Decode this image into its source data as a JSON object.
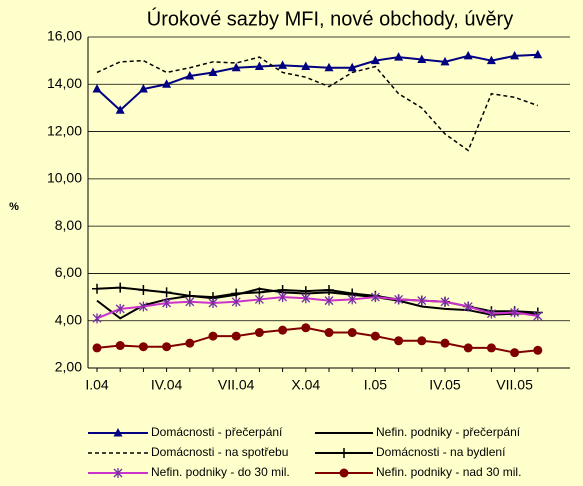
{
  "chart_data": {
    "type": "line",
    "title": "Úrokové sazby MFI, nové obchody, úvěry",
    "y_label": "%",
    "background": "#ffffcc",
    "grid": true,
    "legend": "bottom",
    "categories": [
      "I.04",
      null,
      null,
      "IV.04",
      null,
      null,
      "VII.04",
      null,
      null,
      "X.04",
      null,
      null,
      "I.05",
      null,
      null,
      "IV.05",
      null,
      null,
      "VII.05",
      null
    ],
    "ylim": [
      2,
      16
    ],
    "yticks": [
      {
        "value": 2,
        "label": "2,00"
      },
      {
        "value": 4,
        "label": "4,00"
      },
      {
        "value": 6,
        "label": "6,00"
      },
      {
        "value": 8,
        "label": "8,00"
      },
      {
        "value": 10,
        "label": "10,00"
      },
      {
        "value": 12,
        "label": "12,00"
      },
      {
        "value": 14,
        "label": "14,00"
      },
      {
        "value": 16,
        "label": "16,00"
      }
    ],
    "series": [
      {
        "name": "Domácnosti - přečerpání",
        "color": "#000080",
        "marker": "triangle",
        "dash": false,
        "values": [
          13.8,
          12.9,
          13.8,
          14.0,
          14.35,
          14.5,
          14.7,
          14.75,
          14.8,
          14.75,
          14.7,
          14.7,
          15.0,
          15.15,
          15.05,
          14.95,
          15.2,
          15.0,
          15.2,
          15.25
        ]
      },
      {
        "name": "Nefin. podniky - přečerpání",
        "color": "#000000",
        "marker": "none",
        "dash": false,
        "values": [
          4.85,
          4.1,
          4.65,
          4.9,
          5.05,
          4.95,
          5.1,
          5.35,
          5.2,
          5.15,
          5.2,
          5.1,
          5.0,
          4.85,
          4.6,
          4.5,
          4.45,
          4.25,
          4.3,
          4.3
        ]
      },
      {
        "name": "Domácnosti - na spotřebu",
        "color": "#000000",
        "marker": "none",
        "dash": true,
        "values": [
          14.5,
          14.95,
          15.0,
          14.5,
          14.7,
          14.95,
          14.9,
          15.15,
          14.5,
          14.3,
          13.9,
          14.5,
          14.75,
          13.6,
          13.0,
          11.9,
          11.2,
          13.6,
          13.45,
          13.1
        ]
      },
      {
        "name": "Domácnosti - na bydlení",
        "color": "#000000",
        "marker": "plus",
        "dash": false,
        "values": [
          5.35,
          5.4,
          5.3,
          5.2,
          5.05,
          5.0,
          5.15,
          5.2,
          5.3,
          5.25,
          5.3,
          5.15,
          5.05,
          4.9,
          4.85,
          4.8,
          4.6,
          4.4,
          4.4,
          4.35
        ]
      },
      {
        "name": "Nefin. podniky - do 30 mil.",
        "color": "#cc33cc",
        "marker": "star",
        "dash": false,
        "values": [
          4.1,
          4.5,
          4.6,
          4.75,
          4.8,
          4.75,
          4.8,
          4.9,
          5.0,
          4.95,
          4.85,
          4.9,
          5.0,
          4.9,
          4.85,
          4.8,
          4.6,
          4.3,
          4.35,
          4.2
        ]
      },
      {
        "name": "Nefin. podniky - nad 30 mil.",
        "color": "#800000",
        "marker": "circle",
        "dash": false,
        "values": [
          2.85,
          2.95,
          2.9,
          2.9,
          3.05,
          3.35,
          3.35,
          3.5,
          3.6,
          3.7,
          3.5,
          3.5,
          3.35,
          3.15,
          3.15,
          3.05,
          2.85,
          2.85,
          2.65,
          2.75
        ]
      }
    ]
  }
}
